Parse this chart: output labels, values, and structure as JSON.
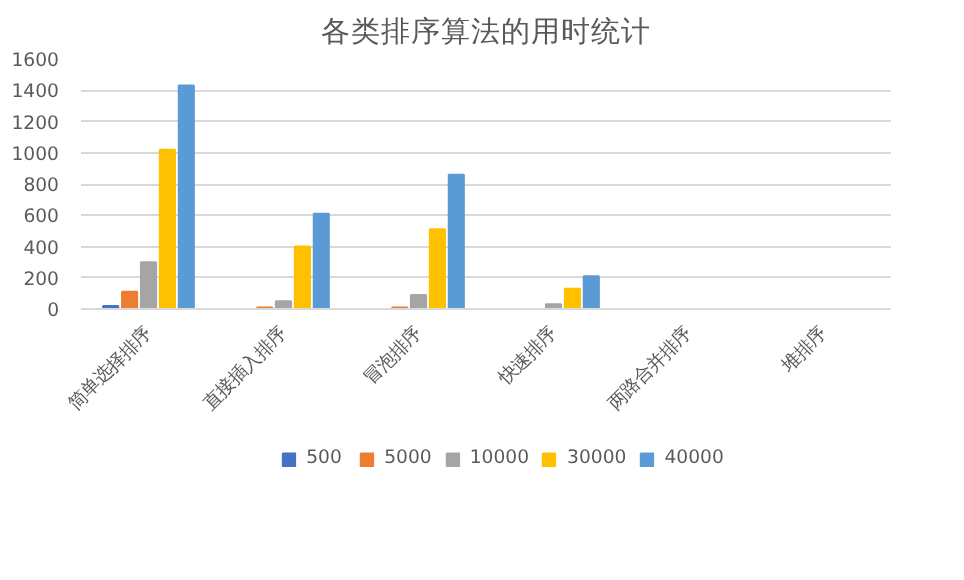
{
  "chart_data": {
    "type": "bar",
    "title": "各类排序算法的用时统计",
    "categories": [
      "简单选择排序",
      "直接插入排序",
      "冒泡排序",
      "快速排序",
      "两路合并排序",
      "堆排序"
    ],
    "series": [
      {
        "name": "500",
        "color": "#4472c4",
        "values": [
          20,
          0,
          0,
          0,
          0,
          0
        ]
      },
      {
        "name": "5000",
        "color": "#ed7d31",
        "values": [
          110,
          10,
          10,
          0,
          0,
          0
        ]
      },
      {
        "name": "10000",
        "color": "#a5a5a5",
        "values": [
          300,
          50,
          90,
          30,
          0,
          0
        ]
      },
      {
        "name": "30000",
        "color": "#ffc000",
        "values": [
          1020,
          400,
          510,
          130,
          0,
          0
        ]
      },
      {
        "name": "40000",
        "color": "#5b9bd5",
        "values": [
          1430,
          610,
          860,
          210,
          0,
          0
        ]
      }
    ],
    "ylim": [
      0,
      1600
    ],
    "yticks": [
      0,
      200,
      400,
      600,
      800,
      1000,
      1200,
      1400,
      1600
    ],
    "grid": "y",
    "legend": "bottom"
  }
}
